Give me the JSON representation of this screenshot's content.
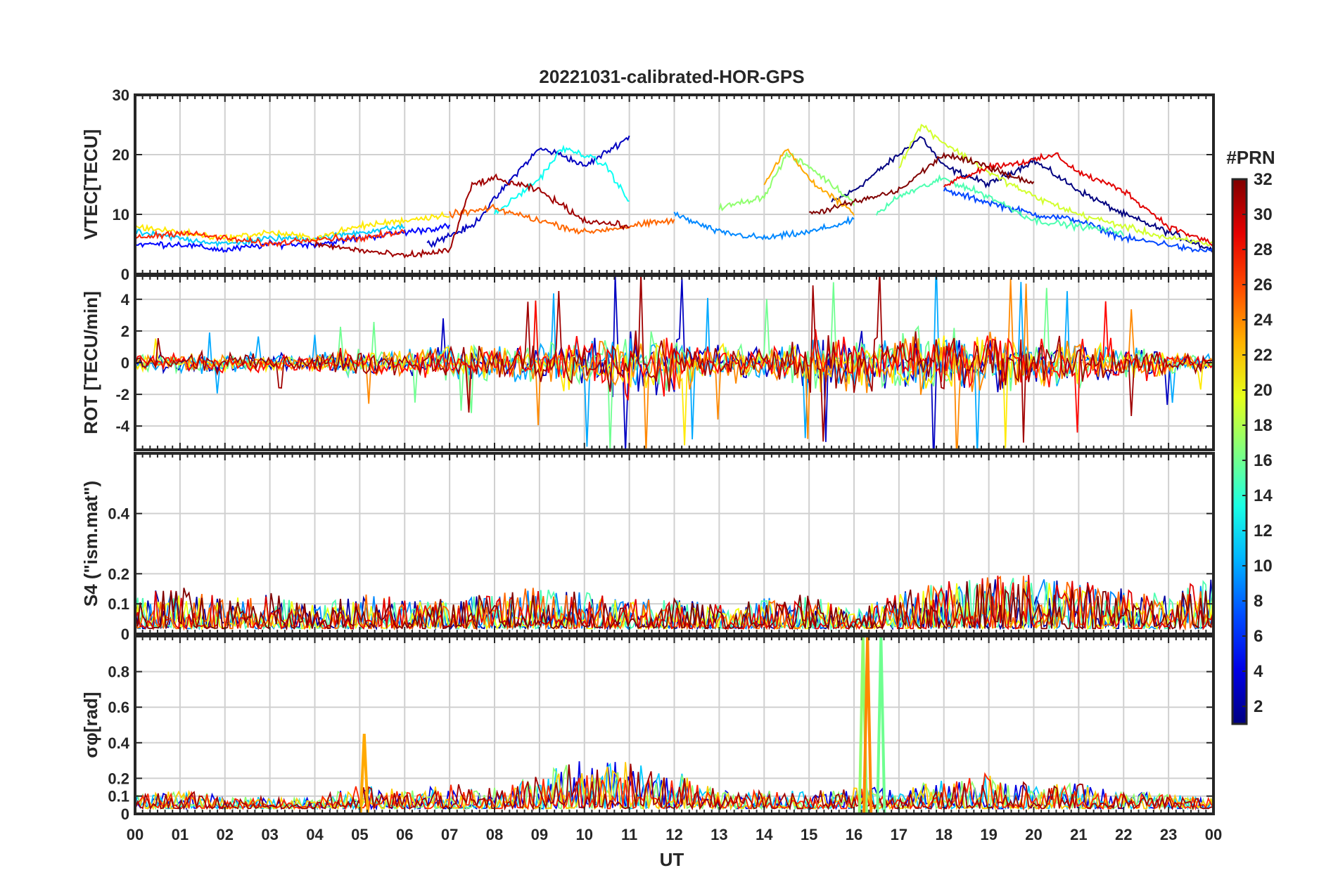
{
  "chart_data": {
    "type": "line",
    "title": "20221031-calibrated-HOR-GPS",
    "xlabel": "UT",
    "xlim": [
      0,
      24
    ],
    "x_tick_labels": [
      "00",
      "01",
      "02",
      "03",
      "04",
      "05",
      "06",
      "07",
      "08",
      "09",
      "10",
      "11",
      "12",
      "13",
      "14",
      "15",
      "16",
      "17",
      "18",
      "19",
      "20",
      "21",
      "22",
      "23",
      "00"
    ],
    "colorbar": {
      "label": "#PRN",
      "range": [
        1,
        32
      ],
      "tick_labels": [
        "2",
        "4",
        "6",
        "8",
        "10",
        "12",
        "14",
        "16",
        "18",
        "20",
        "22",
        "24",
        "26",
        "28",
        "30",
        "32"
      ],
      "colormap": "jet"
    },
    "panels": [
      {
        "name": "vtec",
        "ylabel": "VTEC[TECU]",
        "ylim": [
          0,
          30
        ],
        "y_ticks": [
          0,
          10,
          20,
          30
        ],
        "y_tick_labels": [
          "0",
          "10",
          "20",
          "30"
        ],
        "series": [
          {
            "prn": 1,
            "x": [
              15.5,
              16,
              17,
              17.5,
              18,
              19,
              20,
              21,
              22,
              23,
              24
            ],
            "y": [
              12,
              14,
              20,
              23,
              18,
              15,
              19,
              14,
              10,
              7,
              4
            ]
          },
          {
            "prn": 3,
            "x": [
              6.5,
              7.5,
              8.5,
              9,
              9.5,
              10,
              11
            ],
            "y": [
              5,
              8,
              17,
              21,
              20,
              18,
              23
            ]
          },
          {
            "prn": 5,
            "x": [
              0,
              1,
              2,
              3,
              4,
              5,
              6,
              7
            ],
            "y": [
              5,
              5,
              4,
              5,
              5,
              6,
              7,
              8
            ]
          },
          {
            "prn": 7,
            "x": [
              18,
              19,
              20,
              21,
              22,
              23,
              23.5,
              24
            ],
            "y": [
              14,
              12,
              10,
              9,
              6,
              5,
              4,
              4
            ]
          },
          {
            "prn": 9,
            "x": [
              12,
              13,
              14,
              15,
              16
            ],
            "y": [
              10,
              7,
              6,
              7,
              9
            ]
          },
          {
            "prn": 11,
            "x": [
              0,
              1,
              2,
              3,
              4,
              5,
              6
            ],
            "y": [
              7,
              6,
              5,
              6,
              6,
              7,
              8
            ]
          },
          {
            "prn": 13,
            "x": [
              8,
              9,
              9.5,
              10,
              10.5,
              11
            ],
            "y": [
              10,
              16,
              21,
              20,
              18,
              12
            ]
          },
          {
            "prn": 15,
            "x": [
              16.5,
              17,
              18,
              19,
              20,
              21,
              22
            ],
            "y": [
              10,
              13,
              16,
              13,
              9,
              8,
              7
            ]
          },
          {
            "prn": 17,
            "x": [
              13,
              14,
              14.5,
              15,
              16
            ],
            "y": [
              11,
              13,
              20,
              18,
              12
            ]
          },
          {
            "prn": 19,
            "x": [
              17,
              17.5,
              18,
              19,
              20,
              21,
              22,
              23,
              24
            ],
            "y": [
              18,
              25,
              22,
              17,
              13,
              10,
              8,
              6,
              5
            ]
          },
          {
            "prn": 21,
            "x": [
              0,
              1,
              2,
              3,
              4,
              5,
              6,
              7
            ],
            "y": [
              8,
              7,
              6,
              7,
              6,
              8,
              9,
              10
            ]
          },
          {
            "prn": 23,
            "x": [
              14,
              14.5,
              15,
              15.5,
              16
            ],
            "y": [
              15,
              21,
              16,
              13,
              10
            ]
          },
          {
            "prn": 25,
            "x": [
              7,
              8,
              9,
              10,
              11,
              12
            ],
            "y": [
              10,
              11,
              9,
              7,
              8,
              9
            ]
          },
          {
            "prn": 27,
            "x": [
              0,
              1,
              2,
              3,
              4,
              5,
              6
            ],
            "y": [
              6,
              7,
              6,
              5,
              6,
              6,
              7
            ]
          },
          {
            "prn": 29,
            "x": [
              18,
              19,
              20,
              20.5,
              21,
              22,
              23,
              24
            ],
            "y": [
              15,
              18,
              19,
              20,
              17,
              14,
              8,
              5
            ]
          },
          {
            "prn": 31,
            "x": [
              4,
              5,
              6,
              7,
              7.5,
              8,
              9,
              10,
              11
            ],
            "y": [
              5,
              4,
              3,
              4,
              15,
              16,
              14,
              9,
              8
            ]
          },
          {
            "prn": 32,
            "x": [
              15,
              16,
              17,
              17.5,
              18,
              19,
              20
            ],
            "y": [
              10,
              12,
              14,
              17,
              20,
              18,
              15
            ]
          }
        ]
      },
      {
        "name": "rot",
        "ylabel": "ROT [TECU/min]",
        "ylim": [
          -5.5,
          5.5
        ],
        "y_ticks": [
          -4,
          -2,
          0,
          2,
          4
        ],
        "y_tick_labels": [
          "-4",
          "-2",
          "0",
          "2",
          "4"
        ],
        "envelope": {
          "x": [
            0,
            1,
            2,
            3,
            4,
            5,
            6,
            7,
            8,
            9,
            10,
            11,
            12,
            13,
            14,
            15,
            16,
            17,
            18,
            19,
            20,
            21,
            22,
            23,
            24
          ],
          "amplitude": [
            0.6,
            0.8,
            0.9,
            0.7,
            0.8,
            1.2,
            1.1,
            1.3,
            1.6,
            1.8,
            2.4,
            2.6,
            2.6,
            1.6,
            1.8,
            2.2,
            2.4,
            2.8,
            3.0,
            2.6,
            2.2,
            2.0,
            1.6,
            1.2,
            0.6
          ]
        },
        "series": [
          {
            "prn": 3,
            "x": [
              0,
              24
            ]
          },
          {
            "prn": 10,
            "x": [
              0,
              24
            ]
          },
          {
            "prn": 16,
            "x": [
              0,
              24
            ]
          },
          {
            "prn": 21,
            "x": [
              0,
              24
            ]
          },
          {
            "prn": 24,
            "x": [
              0,
              24
            ]
          },
          {
            "prn": 28,
            "x": [
              0,
              24
            ]
          },
          {
            "prn": 31,
            "x": [
              0,
              24
            ]
          }
        ]
      },
      {
        "name": "s4",
        "ylabel": "S4 (\"ism.mat\")",
        "ylim": [
          0,
          0.6
        ],
        "y_ticks": [
          0,
          0.1,
          0.2,
          0.4
        ],
        "y_tick_labels": [
          "0",
          "0.1",
          "0.2",
          "0.4"
        ],
        "envelope": {
          "x": [
            0,
            1,
            2,
            3,
            4,
            5,
            6,
            7,
            8,
            9,
            10,
            11,
            12,
            13,
            14,
            15,
            16,
            17,
            18,
            19,
            20,
            21,
            22,
            23,
            24
          ],
          "amplitude": [
            0.12,
            0.14,
            0.1,
            0.12,
            0.08,
            0.12,
            0.1,
            0.1,
            0.12,
            0.14,
            0.12,
            0.1,
            0.1,
            0.08,
            0.1,
            0.12,
            0.06,
            0.12,
            0.16,
            0.18,
            0.18,
            0.16,
            0.14,
            0.12,
            0.18
          ]
        },
        "series": [
          {
            "prn": 2,
            "x": [
              0,
              24
            ]
          },
          {
            "prn": 9,
            "x": [
              0,
              24
            ]
          },
          {
            "prn": 15,
            "x": [
              0,
              24
            ]
          },
          {
            "prn": 20,
            "x": [
              0,
              24
            ]
          },
          {
            "prn": 25,
            "x": [
              0,
              24
            ]
          },
          {
            "prn": 29,
            "x": [
              0,
              24
            ]
          },
          {
            "prn": 32,
            "x": [
              0,
              24
            ]
          }
        ]
      },
      {
        "name": "sigma_phi",
        "ylabel": "σφ[rad]",
        "ylim": [
          0,
          1
        ],
        "y_ticks": [
          0,
          0.1,
          0.2,
          0.4,
          0.6,
          0.8
        ],
        "y_tick_labels": [
          "0",
          "0.1",
          "0.2",
          "0.4",
          "0.6",
          "0.8"
        ],
        "envelope": {
          "x": [
            0,
            1,
            2,
            3,
            4,
            5,
            6,
            7,
            8,
            9,
            10,
            11,
            12,
            13,
            14,
            15,
            16,
            17,
            18,
            19,
            20,
            21,
            22,
            23,
            24
          ],
          "amplitude": [
            0.08,
            0.1,
            0.08,
            0.06,
            0.06,
            0.14,
            0.1,
            0.14,
            0.12,
            0.2,
            0.28,
            0.26,
            0.22,
            0.1,
            0.1,
            0.1,
            0.12,
            0.12,
            0.16,
            0.2,
            0.14,
            0.14,
            0.1,
            0.08,
            0.06
          ]
        },
        "spikes": [
          {
            "x": 16.2,
            "y": 1.0,
            "prn": 17
          },
          {
            "x": 16.3,
            "y": 1.0,
            "prn": 24
          },
          {
            "x": 16.6,
            "y": 1.0,
            "prn": 16
          },
          {
            "x": 5.1,
            "y": 0.45,
            "prn": 23
          }
        ],
        "series": [
          {
            "prn": 4,
            "x": [
              0,
              24
            ]
          },
          {
            "prn": 11,
            "x": [
              0,
              24
            ]
          },
          {
            "prn": 17,
            "x": [
              0,
              24
            ]
          },
          {
            "prn": 22,
            "x": [
              0,
              24
            ]
          },
          {
            "prn": 27,
            "x": [
              0,
              24
            ]
          },
          {
            "prn": 31,
            "x": [
              0,
              24
            ]
          }
        ]
      }
    ]
  }
}
